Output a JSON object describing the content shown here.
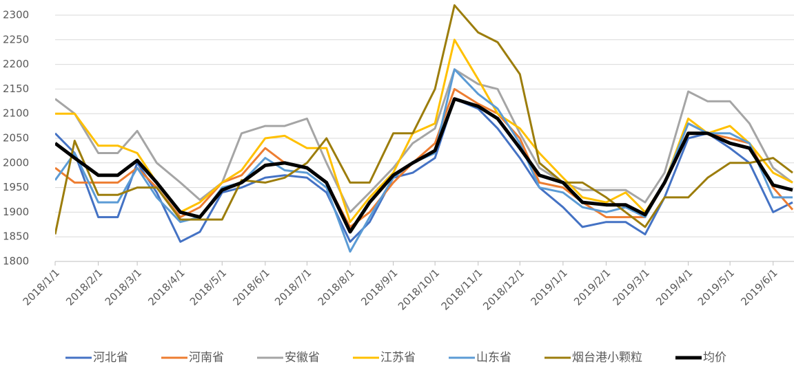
{
  "chart_data": {
    "type": "line",
    "x": [
      "2018/1/1",
      "2018/1/15",
      "2018/2/1",
      "2018/2/15",
      "2018/3/1",
      "2018/3/15",
      "2018/4/1",
      "2018/4/15",
      "2018/5/1",
      "2018/5/15",
      "2018/6/1",
      "2018/6/15",
      "2018/7/1",
      "2018/7/15",
      "2018/8/1",
      "2018/8/15",
      "2018/9/1",
      "2018/9/15",
      "2018/10/1",
      "2018/10/15",
      "2018/11/1",
      "2018/11/15",
      "2018/12/1",
      "2018/12/15",
      "2019/1/1",
      "2019/1/15",
      "2019/2/1",
      "2019/2/15",
      "2019/3/1",
      "2019/3/15",
      "2019/4/1",
      "2019/4/15",
      "2019/5/1",
      "2019/5/15",
      "2019/6/1",
      "2019/6/15"
    ],
    "xlim": [
      "2018/1/1",
      "2019/6/16"
    ],
    "xticks": [
      "2018/1/1",
      "2018/2/1",
      "2018/3/1",
      "2018/4/1",
      "2018/5/1",
      "2018/6/1",
      "2018/7/1",
      "2018/8/1",
      "2018/9/1",
      "2018/10/1",
      "2018/11/1",
      "2018/12/1",
      "2019/1/1",
      "2019/2/1",
      "2019/3/1",
      "2019/4/1",
      "2019/5/1",
      "2019/6/1"
    ],
    "ylim": [
      1800,
      2300
    ],
    "yticks": [
      1800,
      1850,
      1900,
      1950,
      2000,
      2050,
      2100,
      2150,
      2200,
      2250,
      2300
    ],
    "grid": true,
    "legend": "bottom",
    "series": [
      {
        "name": "河北省",
        "color": "#4472c4",
        "width": 3,
        "values": [
          2060,
          2020,
          1890,
          1890,
          2000,
          1940,
          1840,
          1860,
          1940,
          1950,
          1970,
          1975,
          1970,
          1940,
          1840,
          1880,
          1970,
          1980,
          2010,
          2130,
          2110,
          2070,
          2010,
          1950,
          1910,
          1870,
          1880,
          1880,
          1855,
          1930,
          2050,
          2060,
          2030,
          2000,
          1900,
          1920
        ]
      },
      {
        "name": "河南省",
        "color": "#ed7d31",
        "width": 3,
        "values": [
          1990,
          1960,
          1960,
          1960,
          1990,
          1950,
          1890,
          1910,
          1960,
          1975,
          2030,
          2000,
          1990,
          1960,
          1870,
          1900,
          1960,
          2000,
          2040,
          2150,
          2120,
          2100,
          2050,
          1960,
          1950,
          1920,
          1890,
          1890,
          1890,
          1960,
          2080,
          2060,
          2050,
          2040,
          1950,
          1905
        ]
      },
      {
        "name": "安徽省",
        "color": "#a5a5a5",
        "width": 3,
        "values": [
          2130,
          2100,
          2020,
          2020,
          2065,
          2000,
          1960,
          1925,
          1960,
          2060,
          2075,
          2075,
          2090,
          2000,
          1900,
          1940,
          1990,
          2040,
          2070,
          2190,
          2160,
          2150,
          2060,
          1990,
          1960,
          1945,
          1945,
          1945,
          1920,
          1980,
          2145,
          2125,
          2125,
          2080,
          1990,
          1960
        ]
      },
      {
        "name": "江苏省",
        "color": "#ffc000",
        "width": 3,
        "values": [
          2100,
          2100,
          2035,
          2035,
          2020,
          1960,
          1900,
          1920,
          1960,
          1985,
          2050,
          2055,
          2030,
          2030,
          1880,
          1930,
          1980,
          2060,
          2080,
          2250,
          2170,
          2100,
          2070,
          2020,
          1970,
          1930,
          1920,
          1940,
          1900,
          1960,
          2090,
          2060,
          2075,
          2040,
          1980,
          1960
        ]
      },
      {
        "name": "山东省",
        "color": "#5b9bd5",
        "width": 3,
        "values": [
          1965,
          2020,
          1920,
          1920,
          1990,
          1930,
          1880,
          1890,
          1950,
          1960,
          2010,
          1985,
          1980,
          1950,
          1820,
          1890,
          1970,
          2000,
          2020,
          2190,
          2140,
          2110,
          2040,
          1950,
          1940,
          1910,
          1900,
          1910,
          1890,
          1960,
          2080,
          2060,
          2060,
          2040,
          1930,
          1930
        ]
      },
      {
        "name": "烟台港小颗粒",
        "color": "#9c7d0c",
        "width": 3,
        "values": [
          1855,
          2045,
          1935,
          1935,
          1950,
          1950,
          1885,
          1885,
          1885,
          1965,
          1960,
          1970,
          2000,
          2050,
          1960,
          1960,
          2060,
          2060,
          2150,
          2320,
          2265,
          2245,
          2180,
          2000,
          1960,
          1960,
          1930,
          1900,
          1870,
          1930,
          1930,
          1970,
          2000,
          2000,
          2010,
          1980
        ]
      },
      {
        "name": "均价",
        "color": "#000000",
        "width": 5,
        "values": [
          2040,
          2010,
          1975,
          1975,
          2005,
          1960,
          1900,
          1890,
          1945,
          1960,
          1995,
          2000,
          1990,
          1960,
          1860,
          1920,
          1975,
          2000,
          2025,
          2130,
          2115,
          2090,
          2030,
          1975,
          1960,
          1920,
          1915,
          1915,
          1895,
          1960,
          2060,
          2060,
          2040,
          2030,
          1955,
          1945
        ]
      }
    ]
  }
}
